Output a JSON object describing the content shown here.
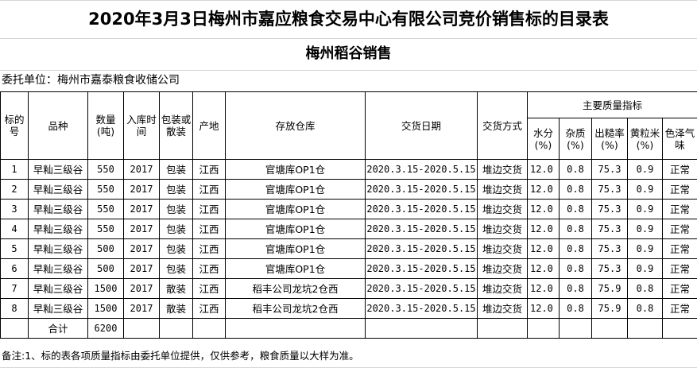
{
  "title": "2020年3月3日梅州市嘉应粮食交易中心有限公司竞价销售标的目录表",
  "subtitle": "梅州稻谷销售",
  "consignor": "委托单位：梅州市嘉泰粮食收储公司",
  "headers": {
    "lot_no": "标的号",
    "variety": "品种",
    "quantity": "数量(吨)",
    "storage_time": "入库时间",
    "packaging": "包装或散装",
    "origin": "产地",
    "warehouse": "存放仓库",
    "delivery_date": "交货日期",
    "delivery_method": "交货方式",
    "quality_group": "主要质量指标",
    "moisture": "水分(%)",
    "impurity": "杂质(%)",
    "brown_rice_yield": "出糙率(%)",
    "yellow_rice": "黄粒米(%)",
    "color_odor": "色泽气味"
  },
  "rows": [
    {
      "no": "1",
      "variety": "早籼三级谷",
      "qty": "550",
      "year": "2017",
      "pack": "包装",
      "origin": "江西",
      "warehouse": "官塘库OP1仓",
      "date": "2020.3.15-2020.5.15",
      "method": "堆边交货",
      "moisture": "12.0",
      "impurity": "0.8",
      "yield": "75.3",
      "yellow": "0.9",
      "color": "正常"
    },
    {
      "no": "2",
      "variety": "早籼三级谷",
      "qty": "550",
      "year": "2017",
      "pack": "包装",
      "origin": "江西",
      "warehouse": "官塘库OP1仓",
      "date": "2020.3.15-2020.5.15",
      "method": "堆边交货",
      "moisture": "12.0",
      "impurity": "0.8",
      "yield": "75.3",
      "yellow": "0.9",
      "color": "正常"
    },
    {
      "no": "3",
      "variety": "早籼三级谷",
      "qty": "550",
      "year": "2017",
      "pack": "包装",
      "origin": "江西",
      "warehouse": "官塘库OP1仓",
      "date": "2020.3.15-2020.5.15",
      "method": "堆边交货",
      "moisture": "12.0",
      "impurity": "0.8",
      "yield": "75.3",
      "yellow": "0.9",
      "color": "正常"
    },
    {
      "no": "4",
      "variety": "早籼三级谷",
      "qty": "550",
      "year": "2017",
      "pack": "包装",
      "origin": "江西",
      "warehouse": "官塘库OP1仓",
      "date": "2020.3.15-2020.5.15",
      "method": "堆边交货",
      "moisture": "12.0",
      "impurity": "0.8",
      "yield": "75.3",
      "yellow": "0.9",
      "color": "正常"
    },
    {
      "no": "5",
      "variety": "早籼三级谷",
      "qty": "500",
      "year": "2017",
      "pack": "包装",
      "origin": "江西",
      "warehouse": "官塘库OP1仓",
      "date": "2020.3.15-2020.5.15",
      "method": "堆边交货",
      "moisture": "12.0",
      "impurity": "0.8",
      "yield": "75.3",
      "yellow": "0.9",
      "color": "正常"
    },
    {
      "no": "6",
      "variety": "早籼三级谷",
      "qty": "500",
      "year": "2017",
      "pack": "包装",
      "origin": "江西",
      "warehouse": "官塘库OP1仓",
      "date": "2020.3.15-2020.5.15",
      "method": "堆边交货",
      "moisture": "12.0",
      "impurity": "0.8",
      "yield": "75.3",
      "yellow": "0.9",
      "color": "正常"
    },
    {
      "no": "7",
      "variety": "早籼三级谷",
      "qty": "1500",
      "year": "2017",
      "pack": "散装",
      "origin": "江西",
      "warehouse": "稻丰公司龙坑2仓西",
      "date": "2020.3.15-2020.5.15",
      "method": "堆边交货",
      "moisture": "12.0",
      "impurity": "0.8",
      "yield": "75.9",
      "yellow": "0.8",
      "color": "正常"
    },
    {
      "no": "8",
      "variety": "早籼三级谷",
      "qty": "1500",
      "year": "2017",
      "pack": "散装",
      "origin": "江西",
      "warehouse": "稻丰公司龙坑2仓西",
      "date": "2020.3.15-2020.5.15",
      "method": "堆边交货",
      "moisture": "12.0",
      "impurity": "0.8",
      "yield": "75.9",
      "yellow": "0.8",
      "color": "正常"
    }
  ],
  "total": {
    "label": "合计",
    "qty": "6200"
  },
  "note": "备注:1、标的表各项质量指标由委托单位提供，仅供参考，粮食质量以大样为准。"
}
